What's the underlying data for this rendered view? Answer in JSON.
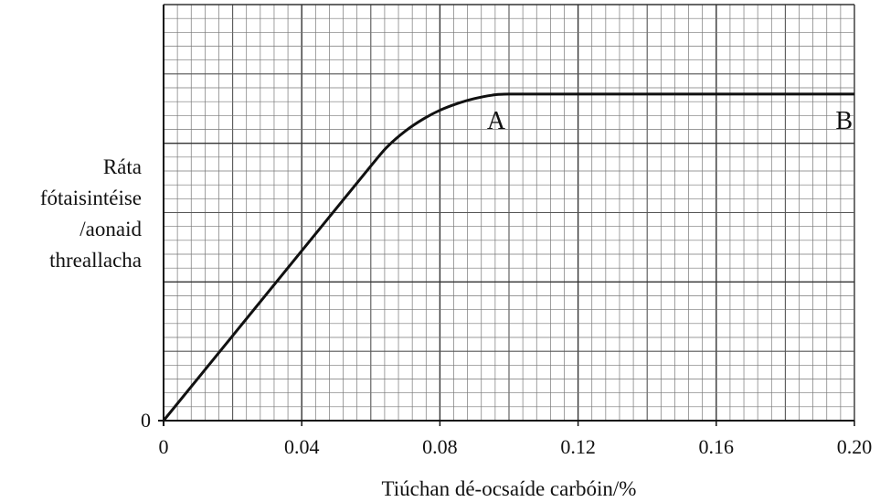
{
  "chart_data": {
    "type": "line",
    "xlabel": "Tiúchan dé-ocsaíde carbóin/%",
    "ylabel_lines": [
      "Ráta",
      "fótaisintéise",
      "/aonaid",
      "threallacha"
    ],
    "xlim": [
      0,
      0.2
    ],
    "ylim": [
      0,
      10
    ],
    "x_ticks": [
      0,
      0.04,
      0.08,
      0.12,
      0.16,
      0.2
    ],
    "x_tick_labels": [
      "0",
      "0.04",
      "0.08",
      "0.12",
      "0.16",
      "0.20"
    ],
    "y_tick_labels": [
      "0"
    ],
    "grid": true,
    "series": [
      {
        "x": [
          0,
          0.02,
          0.04,
          0.06,
          0.065,
          0.07,
          0.075,
          0.08,
          0.085,
          0.09,
          0.095,
          0.1,
          0.12,
          0.16,
          0.2
        ],
        "y": [
          0,
          2.04,
          4.08,
          6.12,
          6.6,
          6.96,
          7.24,
          7.46,
          7.62,
          7.74,
          7.82,
          7.85,
          7.85,
          7.85,
          7.85
        ]
      }
    ],
    "annotations": [
      {
        "text": "A",
        "x": 0.1,
        "y": 7.85
      },
      {
        "text": "B",
        "x": 0.2,
        "y": 7.85
      }
    ]
  }
}
